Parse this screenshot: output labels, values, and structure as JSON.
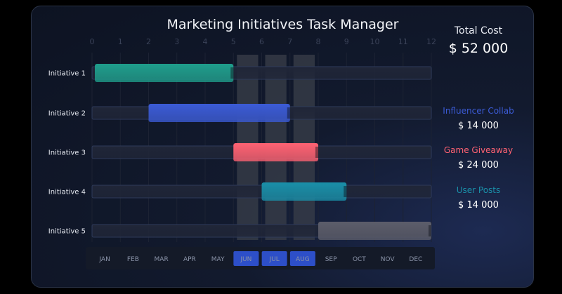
{
  "title": "Marketing Initiatives Task Manager",
  "total_cost": {
    "label": "Total Cost",
    "value": "$ 52 000"
  },
  "legend": [
    {
      "name": "Influencer Collab",
      "value": "$ 14 000",
      "color": "#3b5bd6"
    },
    {
      "name": "Game Giveaway",
      "value": "$ 24 000",
      "color": "#ff6272"
    },
    {
      "name": "User Posts",
      "value": "$ 14 000",
      "color": "#1a8fa8"
    }
  ],
  "chart_data": {
    "type": "bar",
    "orientation": "horizontal-gantt",
    "x_ticks": [
      0,
      1,
      2,
      3,
      4,
      5,
      6,
      7,
      8,
      9,
      10,
      11,
      12
    ],
    "xlim": [
      0,
      12
    ],
    "months": [
      "JAN",
      "FEB",
      "MAR",
      "APR",
      "MAY",
      "JUN",
      "JUL",
      "AUG",
      "SEP",
      "OCT",
      "NOV",
      "DEC"
    ],
    "highlighted_months": [
      "JUN",
      "JUL",
      "AUG"
    ],
    "initiatives": [
      {
        "name": "Initiative 1",
        "start": 0,
        "end": 5,
        "color": "#1f9e8c"
      },
      {
        "name": "Initiative 2",
        "start": 2,
        "end": 7,
        "color": "#3b5bd6"
      },
      {
        "name": "Initiative 3",
        "start": 5,
        "end": 8,
        "color": "#ff6272"
      },
      {
        "name": "Initiative 4",
        "start": 6,
        "end": 9,
        "color": "#1a8fa8"
      },
      {
        "name": "Initiative 5",
        "start": 8,
        "end": 12,
        "color": "#5c5d6a"
      }
    ],
    "grid": true
  }
}
